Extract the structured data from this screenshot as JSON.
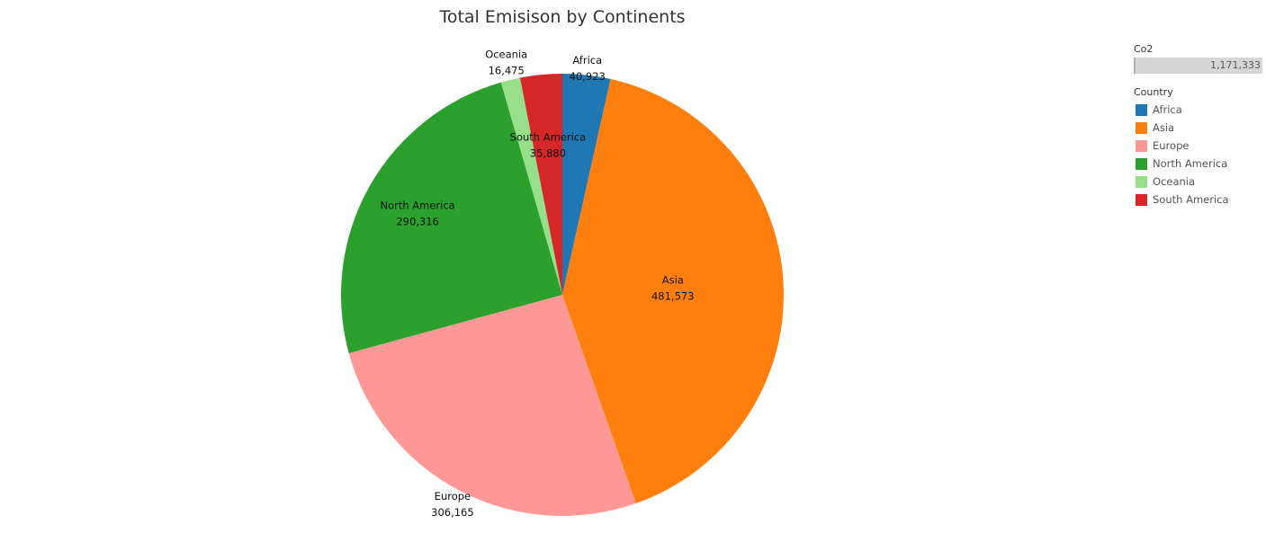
{
  "chart_data": {
    "type": "pie",
    "title": "Total Emisison by Continents",
    "slices": [
      {
        "label": "Africa",
        "value": 40923,
        "value_label": "40,923",
        "color": "#1f77b4"
      },
      {
        "label": "Asia",
        "value": 481573,
        "value_label": "481,573",
        "color": "#ff7f0e"
      },
      {
        "label": "Europe",
        "value": 306165,
        "value_label": "306,165",
        "color": "#ff9896"
      },
      {
        "label": "North America",
        "value": 290316,
        "value_label": "290,316",
        "color": "#2ca02c"
      },
      {
        "label": "Oceania",
        "value": 16475,
        "value_label": "16,475",
        "color": "#98df8a"
      },
      {
        "label": "South America",
        "value": 35880,
        "value_label": "35,880",
        "color": "#d62728"
      }
    ],
    "legend_size": {
      "title": "Co2",
      "max_label": "1,171,333"
    },
    "legend_color": {
      "title": "Country",
      "items": [
        {
          "label": "Africa",
          "color": "#1f77b4"
        },
        {
          "label": "Asia",
          "color": "#ff7f0e"
        },
        {
          "label": "Europe",
          "color": "#ff9896"
        },
        {
          "label": "North America",
          "color": "#2ca02c"
        },
        {
          "label": "Oceania",
          "color": "#98df8a"
        },
        {
          "label": "South America",
          "color": "#d62728"
        }
      ]
    }
  }
}
